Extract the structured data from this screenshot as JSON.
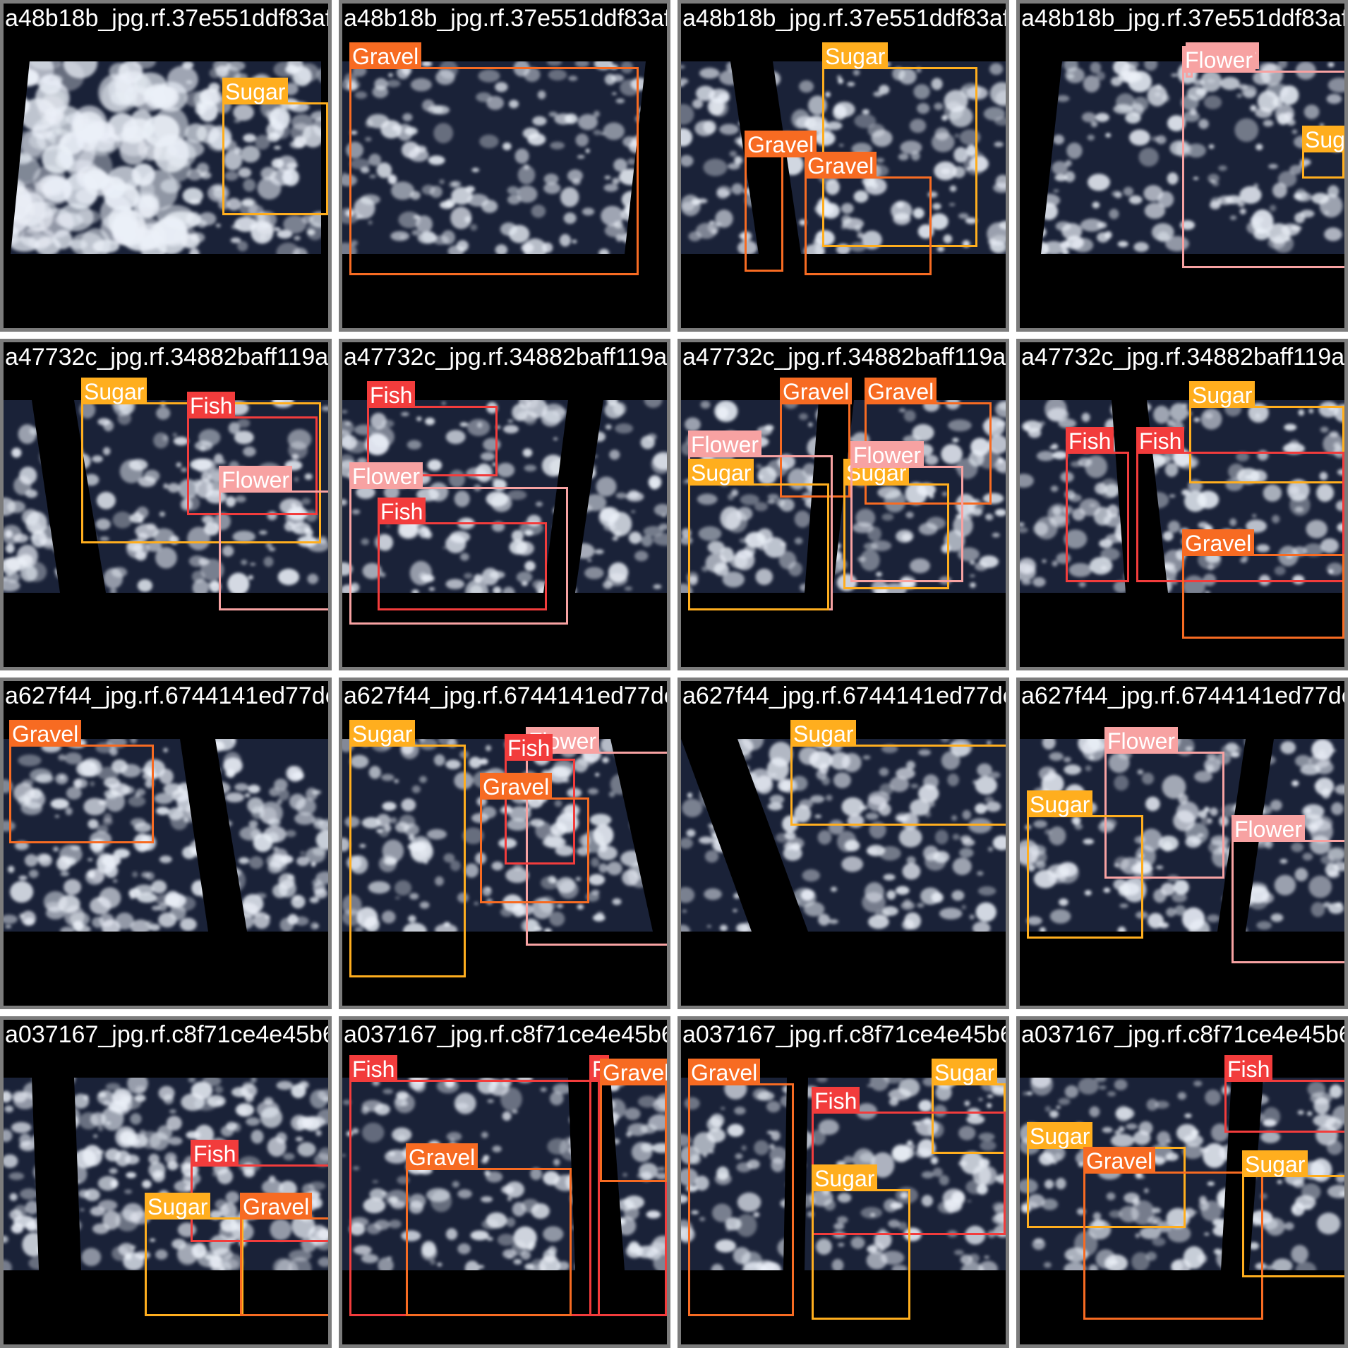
{
  "class_colors": {
    "Sugar": "#ffae1e",
    "Gravel": "#f76b22",
    "Fish": "#f23c3c",
    "Flower": "#f7a2a2"
  },
  "tiles": [
    {
      "filename": "a48b18b_jpg.rf.37e551ddf83af4d3610507af0f5831fa8fe7c57480af5f7283.182e52e64a0b831f2255f5af2424e66a37ec",
      "boxes": [
        {
          "label": "Sugar"
        }
      ]
    },
    {
      "filename": "a48b18b_jpg.rf.37e551ddf83af4d3610507af0f5831fa8fe7c57480af5f7283.182e52e64a0b831f2255f5af2424e66a37ec",
      "boxes": [
        {
          "label": "Gravel"
        }
      ]
    },
    {
      "filename": "a48b18b_jpg.rf.37e551ddf83af4d3610507af0f5831fa8fe7c57480af5f7283.182e52e64a0b831f2255f5af2424e66a37ec",
      "boxes": [
        {
          "label": "Sugar"
        },
        {
          "label": "Gravel"
        },
        {
          "label": "Gravel"
        }
      ]
    },
    {
      "filename": "a48b18b_jpg.rf.37e551ddf83af4d3610507af0f5831fa8fe7c57480af5f7283.182e52e64a0b831f2255f5af2424e66a37ec",
      "boxes": [
        {
          "label": "Flower"
        },
        {
          "label": "Flower"
        },
        {
          "label": "Sugar"
        }
      ]
    },
    {
      "filename": "a47732c_jpg.rf.34882baff119af09d05cd2fbf47c2bc56cf651a7564386pc6b965f2c6363a2b4882186j4a41faf096b537bb",
      "boxes": [
        {
          "label": "Sugar"
        },
        {
          "label": "Fish"
        },
        {
          "label": "Flower"
        }
      ]
    },
    {
      "filename": "a47732c_jpg.rf.34882baff119af09d05cd2fbf47c2bc56cf651a7564386pc6b965f2c6363a2b4882186j4a41faf096b537bb",
      "boxes": [
        {
          "label": "Fish"
        },
        {
          "label": "Flower"
        },
        {
          "label": "Fish"
        }
      ]
    },
    {
      "filename": "a47732c_jpg.rf.34882baff119af09d05cd2fbf47c2bc56cf651a7564386pc6b965f2c6363a2b4882186j4a41faf096b537bb",
      "boxes": [
        {
          "label": "Gravel"
        },
        {
          "label": "Gravel"
        },
        {
          "label": "Flower"
        },
        {
          "label": "Sugar"
        },
        {
          "label": "Sugar"
        },
        {
          "label": "Flower"
        }
      ]
    },
    {
      "filename": "a47732c_jpg.rf.34882baff119af09d05cd2fbf47c2bc56cf651a7564386pc6b965f2c6363a2b4882186j4a41faf096b537bb",
      "boxes": [
        {
          "label": "Sugar"
        },
        {
          "label": "Fish"
        },
        {
          "label": "Fish"
        },
        {
          "label": "Gravel"
        }
      ]
    },
    {
      "filename": "a627f44_jpg.rf.6744141ed77dc4828f6jp282025582f30d2d1b75534f2b5ear1487 21c4160266e8dad95secfdab2572abb7",
      "boxes": [
        {
          "label": "Gravel"
        }
      ]
    },
    {
      "filename": "a627f44_jpg.rf.6744141ed77dc4828f6jp282025582f30d2d1b75534f2b5ear1487 21c4160266e8dad95secfdab2572abb7",
      "boxes": [
        {
          "label": "Sugar"
        },
        {
          "label": "Flower"
        },
        {
          "label": "Fish"
        },
        {
          "label": "Gravel"
        }
      ]
    },
    {
      "filename": "a627f44_jpg.rf.6744141ed77dc4828f6jp282025582f30d2d1b75534f2b5ear1487 21c4160266e8dad95secfdab2572abb7",
      "boxes": [
        {
          "label": "Sugar"
        }
      ]
    },
    {
      "filename": "a627f44_jpg.rf.6744141ed77dc4828f6jp282025582f30d2d1b75534f2b5ear1487 21c4160266e8dad95secfdab2572abb7",
      "boxes": [
        {
          "label": "Flower"
        },
        {
          "label": "Sugar"
        },
        {
          "label": "Flower"
        }
      ]
    },
    {
      "filename": "a037167_jpg.rf.c8f71ce4e45b6a7497 5jp9d6a1227b8f82e37c4594d91 6fbf280d85d62b88f6570e0j54363b3b2fecaee",
      "boxes": [
        {
          "label": "Fish"
        },
        {
          "label": "Sugar"
        },
        {
          "label": "Gravel"
        }
      ]
    },
    {
      "filename": "a037167_jpg.rf.c8f71ce4e45b6a7497 5jp9d6a1227b8f82e37c4594d91 6fbf280d85d62b88f6570e0j54363b3b2fecaee",
      "boxes": [
        {
          "label": "Fish"
        },
        {
          "label": "F"
        },
        {
          "label": "Gravel"
        },
        {
          "label": "Gravel"
        }
      ]
    },
    {
      "filename": "a037167_jpg.rf.c8f71ce4e45b6a7497 5jp9d6a1227b8f82e37c4594d91 6fbf280d85d62b88f6570e0j54363b3b2fecaee",
      "boxes": [
        {
          "label": "Gravel"
        },
        {
          "label": "Sugar"
        },
        {
          "label": "Fish"
        },
        {
          "label": "Sugar"
        }
      ]
    },
    {
      "filename": "a037167_jpg.rf.c8f71ce4e45b6a7497 5jp9d6a1227b8f82e37c4594d91 6fbf280d85d62b88f6570e0j54363b3b2fecaee",
      "boxes": [
        {
          "label": "Fish"
        },
        {
          "label": "Sugar"
        },
        {
          "label": "Gravel"
        },
        {
          "label": "Sugar"
        }
      ]
    }
  ]
}
